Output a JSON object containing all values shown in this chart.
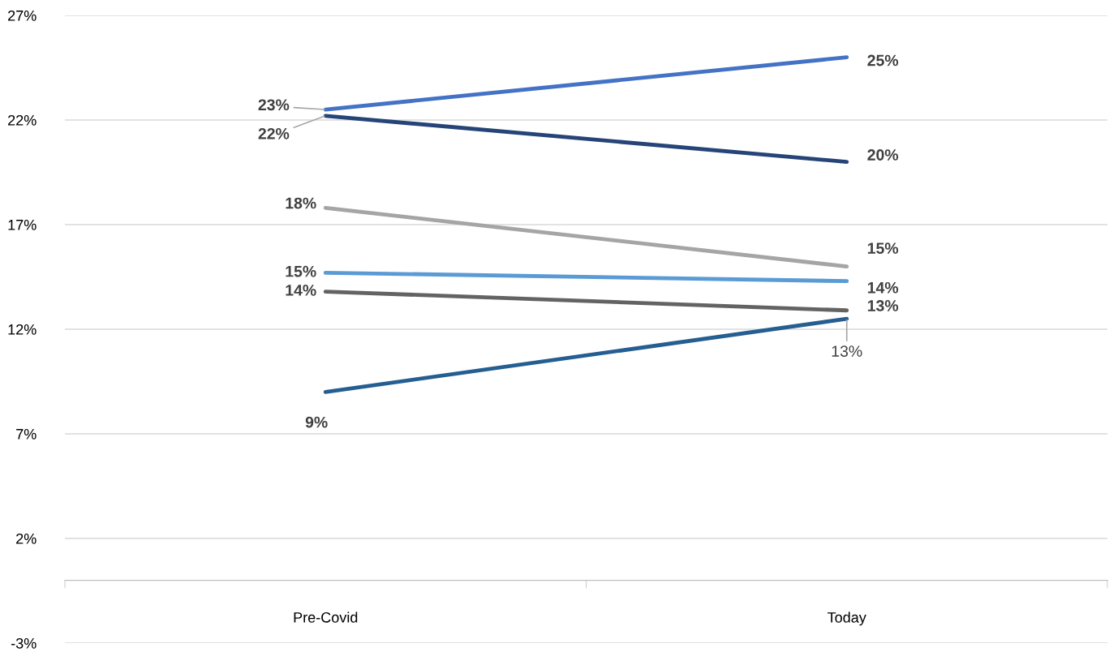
{
  "chart_data": {
    "type": "line",
    "categories": [
      "Pre-Covid",
      "Today"
    ],
    "ylim": [
      -3,
      27
    ],
    "yticks": [
      {
        "value": -3,
        "label": "-3%"
      },
      {
        "value": 2,
        "label": "2%"
      },
      {
        "value": 7,
        "label": "7%"
      },
      {
        "value": 12,
        "label": "12%"
      },
      {
        "value": 17,
        "label": "17%"
      },
      {
        "value": 22,
        "label": "22%"
      },
      {
        "value": 27,
        "label": "27%"
      }
    ],
    "grid": "y",
    "legend": false,
    "marker": "none",
    "line_style": "solid",
    "series": [
      {
        "color": "#4472c4",
        "values": [
          22.5,
          25.0
        ],
        "value_labels": [
          "23%",
          "25%"
        ]
      },
      {
        "color": "#264478",
        "values": [
          22.2,
          20.0
        ],
        "value_labels": [
          "22%",
          "20%"
        ]
      },
      {
        "color": "#a5a5a5",
        "values": [
          17.8,
          15.0
        ],
        "value_labels": [
          "18%",
          "15%"
        ]
      },
      {
        "color": "#5b9bd5",
        "values": [
          14.7,
          14.3
        ],
        "value_labels": [
          "15%",
          "14%"
        ]
      },
      {
        "color": "#636363",
        "values": [
          13.8,
          12.9
        ],
        "value_labels": [
          "14%",
          "13%"
        ]
      },
      {
        "color": "#255e91",
        "values": [
          9.0,
          12.5
        ],
        "value_labels": [
          "9%",
          "13%"
        ]
      }
    ]
  }
}
